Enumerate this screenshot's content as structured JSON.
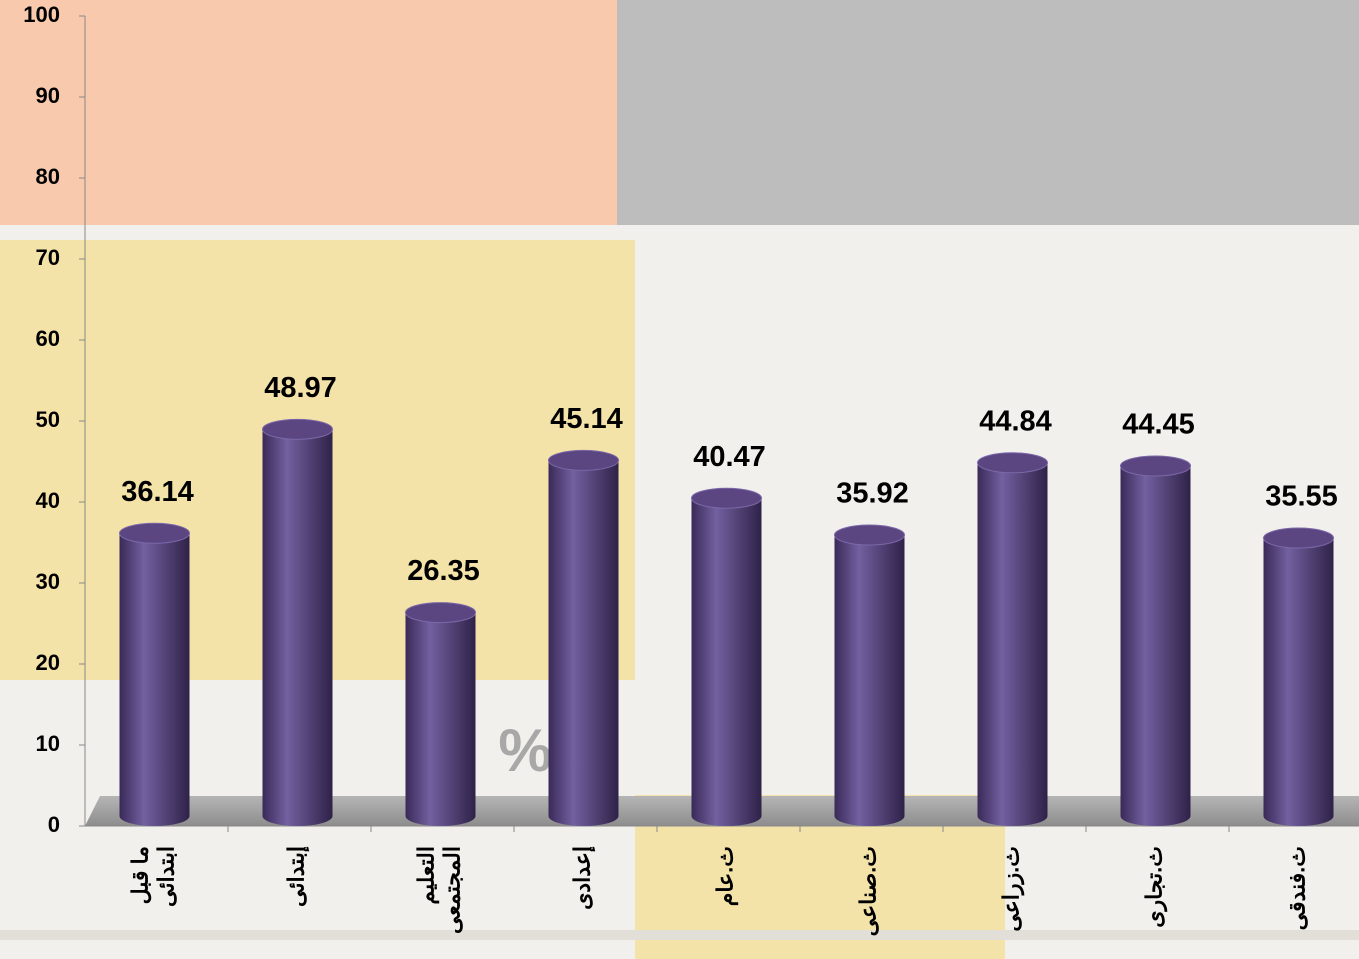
{
  "chart_data": {
    "type": "bar",
    "categories": [
      "ما قبل ابتدائى",
      "إبتدائى",
      "التعليم المجتمعى",
      "إعدادى",
      "ث.عام",
      "ث.صناعى",
      "ث.زراعى",
      "ث.تجارى",
      "ث.فندقى"
    ],
    "values": [
      36.14,
      48.97,
      26.35,
      45.14,
      40.47,
      35.92,
      44.84,
      44.45,
      35.55
    ],
    "color": "#5b4682",
    "annotation": "%",
    "ylim": [
      0,
      100
    ],
    "yticks": [
      0,
      10,
      20,
      30,
      40,
      50,
      60,
      70,
      80,
      90,
      100
    ],
    "grid": false
  }
}
